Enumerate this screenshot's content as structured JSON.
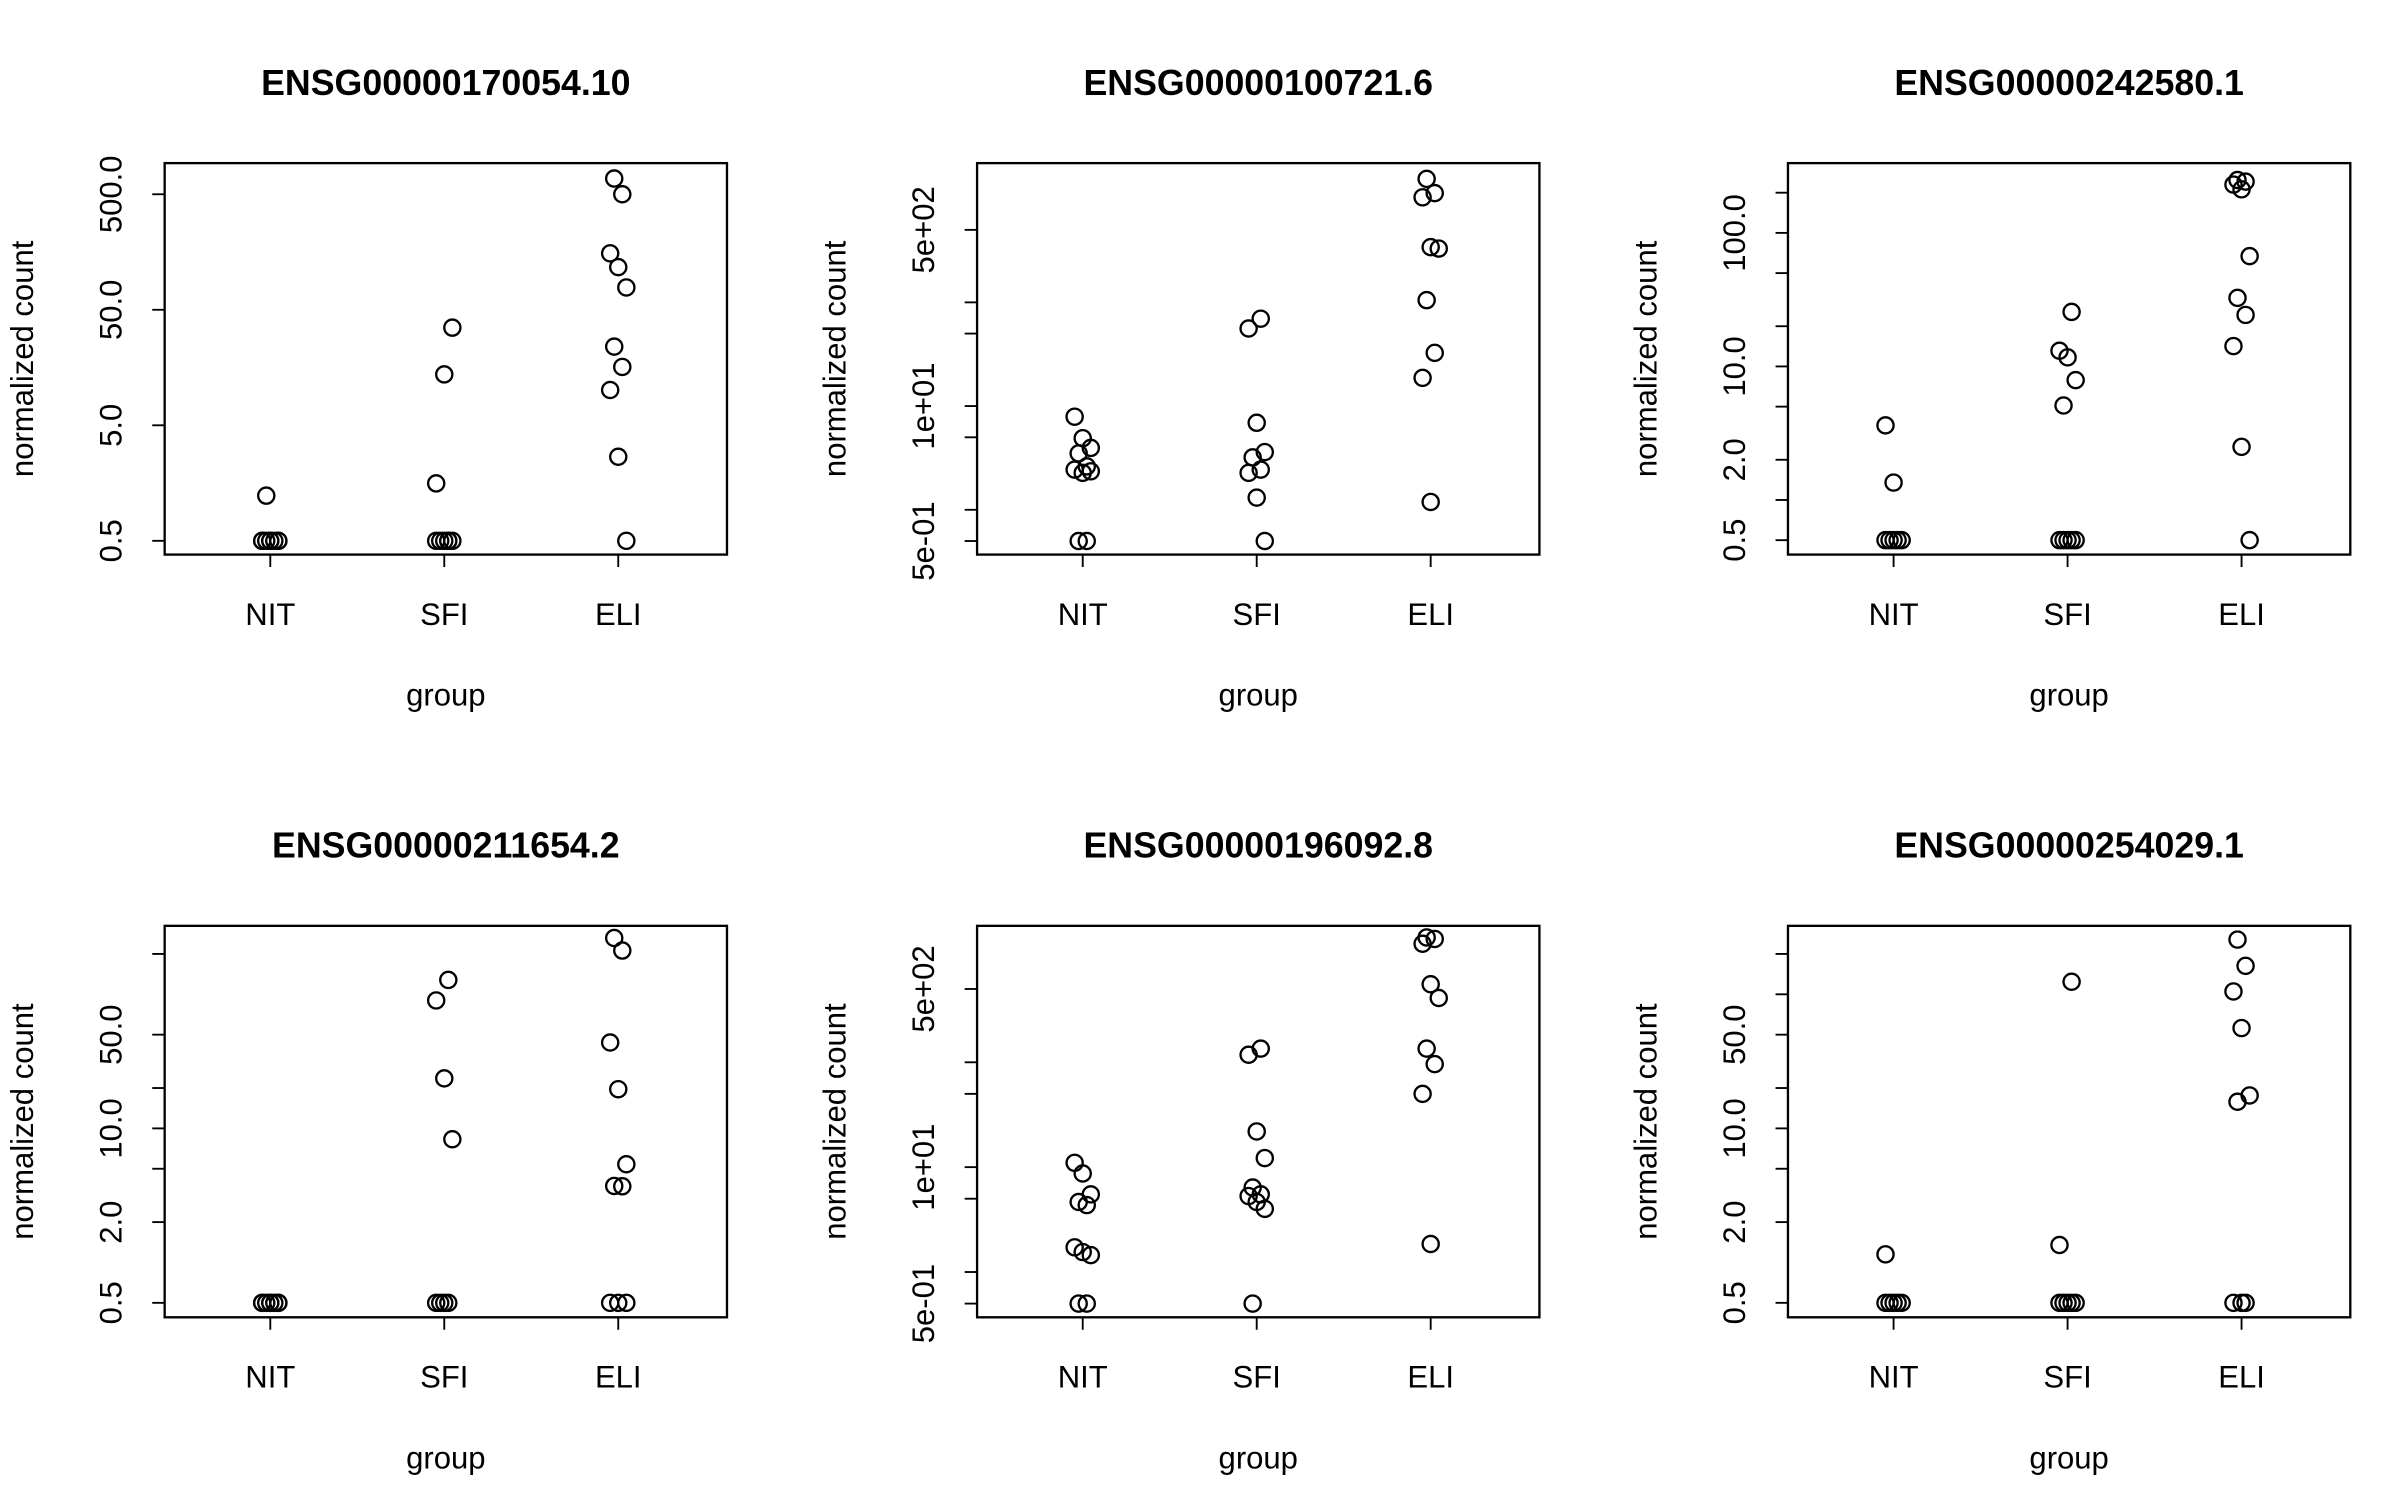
{
  "chart_data": [
    {
      "type": "scatter",
      "title": "ENSG00000170054.10",
      "x_label": "group",
      "y_label": "normalized count",
      "log_y": true,
      "color": "#000000",
      "categories": [
        "NIT",
        "SFI",
        "ELI"
      ],
      "values": [
        [
          0.5,
          0.5,
          0.5,
          0.5,
          0.5,
          0.5,
          0.5,
          0.5,
          1.23
        ],
        [
          0.5,
          0.5,
          0.5,
          0.5,
          0.5,
          0.5,
          1.57,
          13.8,
          35
        ],
        [
          684,
          500,
          154,
          117,
          78,
          24,
          16,
          10.1,
          2.67,
          0.5
        ]
      ],
      "ylim": [
        0.38,
        930
      ],
      "yticks": [
        0.5,
        {
          "value": 5,
          "label": "5.0"
        },
        {
          "value": 50,
          "label": "50.0"
        },
        {
          "value": 500,
          "label": "500.0"
        }
      ],
      "yminorticks": []
    },
    {
      "type": "scatter",
      "title": "ENSG00000100721.6",
      "x_label": "group",
      "y_label": "normalized count",
      "log_y": true,
      "color": "#000000",
      "categories": [
        "NIT",
        "SFI",
        "ELI"
      ],
      "values": [
        [
          7.9,
          4.9,
          3.95,
          3.5,
          2.62,
          2.44,
          2.27,
          2.35,
          0.5,
          0.5
        ],
        [
          69.6,
          56,
          6.9,
          3.6,
          3.2,
          2.44,
          2.27,
          1.31,
          0.5
        ],
        [
          1550,
          1130,
          1030,
          341,
          330,
          105,
          32.6,
          18.7,
          1.19
        ]
      ],
      "ylim": [
        0.37,
        2200
      ],
      "yticks": [
        {
          "value": 0.5,
          "label": "5e-01"
        },
        {
          "value": 10,
          "label": "1e+01"
        },
        {
          "value": 500,
          "label": "5e+02"
        }
      ],
      "yminorticks": [
        1,
        5,
        50,
        100
      ]
    },
    {
      "type": "scatter",
      "title": "ENSG00000242580.1",
      "x_label": "group",
      "y_label": "normalized count",
      "log_y": true,
      "color": "#000000",
      "categories": [
        "NIT",
        "SFI",
        "ELI"
      ],
      "values": [
        [
          3.62,
          1.35,
          0.5,
          0.5,
          0.5,
          0.5,
          0.5
        ],
        [
          25.6,
          13.1,
          11.7,
          7.9,
          5.1,
          0.5,
          0.5,
          0.5,
          0.5,
          0.5
        ],
        [
          249,
          242,
          230,
          212,
          67,
          32.6,
          24.3,
          14.2,
          2.5,
          0.5
        ]
      ],
      "ylim": [
        0.39,
        333
      ],
      "yticks": [
        0.5,
        {
          "value": 2,
          "label": "2.0"
        },
        {
          "value": 10,
          "label": "10.0"
        },
        {
          "value": 100,
          "label": "100.0"
        }
      ],
      "yminorticks": [
        1,
        5,
        20,
        50,
        200
      ]
    },
    {
      "type": "scatter",
      "title": "ENSG00000211654.2",
      "x_label": "group",
      "y_label": "normalized count",
      "log_y": true,
      "color": "#000000",
      "categories": [
        "NIT",
        "SFI",
        "ELI"
      ],
      "values": [
        [
          0.5,
          0.5,
          0.5,
          0.5,
          0.5,
          0.5,
          0.5,
          0.5
        ],
        [
          128,
          90,
          23.6,
          8.3,
          0.5,
          0.5,
          0.5,
          0.5
        ],
        [
          263,
          212,
          43.7,
          19.6,
          5.4,
          3.72,
          3.7,
          0.5,
          0.5,
          0.5
        ]
      ],
      "ylim": [
        0.39,
        324
      ],
      "yticks": [
        0.5,
        {
          "value": 2,
          "label": "2.0"
        },
        {
          "value": 10,
          "label": "10.0"
        },
        {
          "value": 50,
          "label": "50.0"
        }
      ],
      "yminorticks": [
        5,
        20,
        200
      ]
    },
    {
      "type": "scatter",
      "title": "ENSG00000196092.8",
      "x_label": "group",
      "y_label": "normalized count",
      "log_y": true,
      "color": "#000000",
      "categories": [
        "NIT",
        "SFI",
        "ELI"
      ],
      "values": [
        [
          11,
          8.7,
          5.5,
          4.65,
          4.35,
          1.72,
          1.55,
          1.45,
          0.5,
          0.5
        ],
        [
          135,
          118,
          21.9,
          12.2,
          6.4,
          5.5,
          5.3,
          4.65,
          4.0,
          0.5
        ],
        [
          1550,
          1500,
          1350,
          555,
          410,
          135,
          96,
          50,
          1.85
        ]
      ],
      "ylim": [
        0.37,
        2000
      ],
      "yticks": [
        {
          "value": 0.5,
          "label": "5e-01"
        },
        {
          "value": 10,
          "label": "1e+01"
        },
        {
          "value": 500,
          "label": "5e+02"
        }
      ],
      "yminorticks": [
        1,
        5,
        50,
        100
      ]
    },
    {
      "type": "scatter",
      "title": "ENSG00000254029.1",
      "x_label": "group",
      "y_label": "normalized count",
      "log_y": true,
      "color": "#000000",
      "categories": [
        "NIT",
        "SFI",
        "ELI"
      ],
      "values": [
        [
          1.15,
          0.5,
          0.5,
          0.5,
          0.5,
          0.5
        ],
        [
          124,
          1.35,
          0.5,
          0.5,
          0.5,
          0.5,
          0.5
        ],
        [
          256,
          163,
          105,
          56,
          17.6,
          15.8,
          0.5,
          0.5,
          0.5
        ]
      ],
      "ylim": [
        0.39,
        324
      ],
      "yticks": [
        0.5,
        {
          "value": 2,
          "label": "2.0"
        },
        {
          "value": 10,
          "label": "10.0"
        },
        {
          "value": 50,
          "label": "50.0"
        }
      ],
      "yminorticks": [
        5,
        20,
        100,
        200
      ]
    }
  ]
}
